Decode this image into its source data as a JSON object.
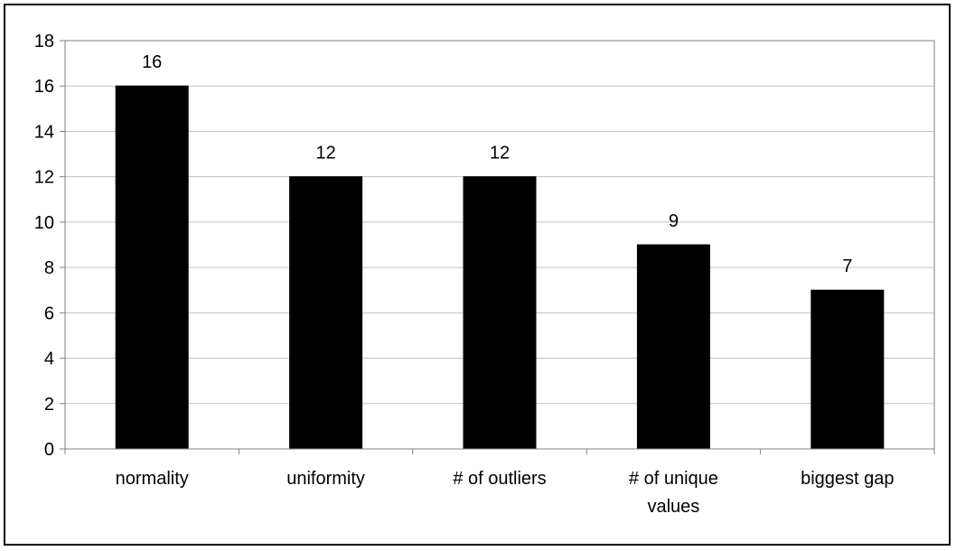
{
  "chart_data": {
    "type": "bar",
    "categories": [
      [
        "normality"
      ],
      [
        "uniformity"
      ],
      [
        "# of outliers"
      ],
      [
        "# of unique",
        "values"
      ],
      [
        "biggest gap"
      ]
    ],
    "values": [
      16,
      12,
      12,
      9,
      7
    ],
    "data_labels": [
      "16",
      "12",
      "12",
      "9",
      "7"
    ],
    "title": "",
    "xlabel": "",
    "ylabel": "",
    "ylim": [
      0,
      18
    ],
    "yticks": [
      0,
      2,
      4,
      6,
      8,
      10,
      12,
      14,
      16,
      18
    ],
    "grid": "horizontal",
    "legend": "none",
    "colors": {
      "bar": "#000000",
      "grid": "#c0c0c0",
      "axis": "#808080",
      "frame": "#000000"
    }
  }
}
